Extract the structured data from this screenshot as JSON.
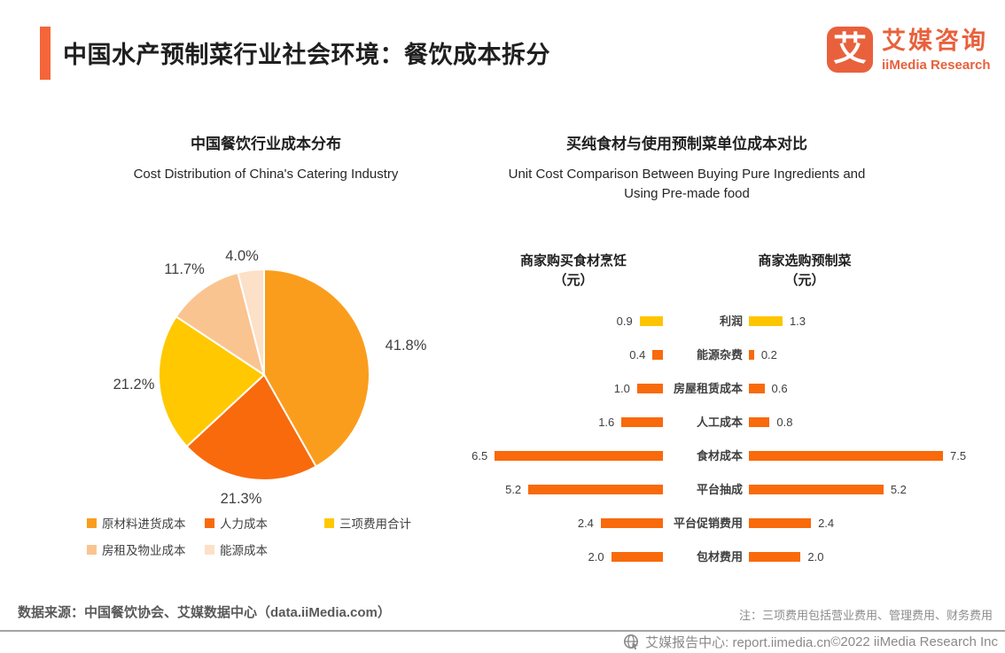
{
  "header": {
    "title": "中国水产预制菜行业社会环境：餐饮成本拆分",
    "logo": {
      "glyph": "艾",
      "name_cn": "艾媒咨询",
      "name_en": "iiMedia Research"
    }
  },
  "pie_section": {
    "title_cn": "中国餐饮行业成本分布",
    "title_en": "Cost Distribution of China's Catering Industry"
  },
  "tornado_section": {
    "title_cn": "买纯食材与使用预制菜单位成本对比",
    "title_en_line1": "Unit Cost Comparison Between Buying Pure Ingredients and",
    "title_en_line2": "Using Pre-made food",
    "left_col_header_line1": "商家购买食材烹饪",
    "left_col_header_line2": "（元）",
    "right_col_header_line1": "商家选购预制菜",
    "right_col_header_line2": "（元）"
  },
  "bottom": {
    "source": "数据来源：中国餐饮协会、艾媒数据中心（data.iiMedia.com）",
    "note": "注：三项费用包括营业费用、管理费用、财务费用"
  },
  "footer": {
    "report_center": "艾媒报告中心: report.iimedia.cn",
    "copyright": "©2022  iiMedia Research Inc",
    "globe_icon": "globe-cursor-icon"
  },
  "colors": {
    "accent_orange": "#F4663A",
    "logo_orange": "#E8613C",
    "bar_orange": "#F86A0B",
    "bar_gold": "#FDC500",
    "text_dark": "#404040",
    "text_gray": "#8c8c8c"
  },
  "chart_data": [
    {
      "type": "pie",
      "title": "中国餐饮行业成本分布",
      "subtitle": "Cost Distribution of China's Catering Industry",
      "labels": [
        "原材料进货成本",
        "人力成本",
        "三项费用合计",
        "房租及物业成本",
        "能源成本"
      ],
      "values": [
        41.8,
        21.3,
        21.2,
        11.7,
        4.0
      ],
      "value_labels": [
        "41.8%",
        "21.3%",
        "21.2%",
        "11.7%",
        "4.0%"
      ],
      "colors": [
        "#FA9D1D",
        "#F96A0D",
        "#FFC800",
        "#FAC491",
        "#FCE0C8"
      ],
      "start_angle_deg": 0,
      "direction": "clockwise",
      "legend_position": "bottom"
    },
    {
      "type": "bar",
      "orientation": "horizontal-tornado",
      "title": "买纯食材与使用预制菜单位成本对比",
      "subtitle": "Unit Cost Comparison Between Buying Pure Ingredients and Using Pre-made food",
      "categories": [
        "利润",
        "能源杂费",
        "房屋租赁成本",
        "人工成本",
        "食材成本",
        "平台抽成",
        "平台促销费用",
        "包材费用"
      ],
      "series": [
        {
          "name": "商家购买食材烹饪（元）",
          "values": [
            0.9,
            0.4,
            1.0,
            1.6,
            6.5,
            5.2,
            2.4,
            2.0
          ]
        },
        {
          "name": "商家选购预制菜（元）",
          "values": [
            1.3,
            0.2,
            0.6,
            0.8,
            7.5,
            5.2,
            2.4,
            2.0
          ]
        }
      ],
      "bar_color_default": "#F86A0B",
      "bar_color_first_row": "#FDC500",
      "xlim": [
        0,
        7.5
      ],
      "note": "注：三项费用包括营业费用、管理费用、财务费用"
    }
  ]
}
